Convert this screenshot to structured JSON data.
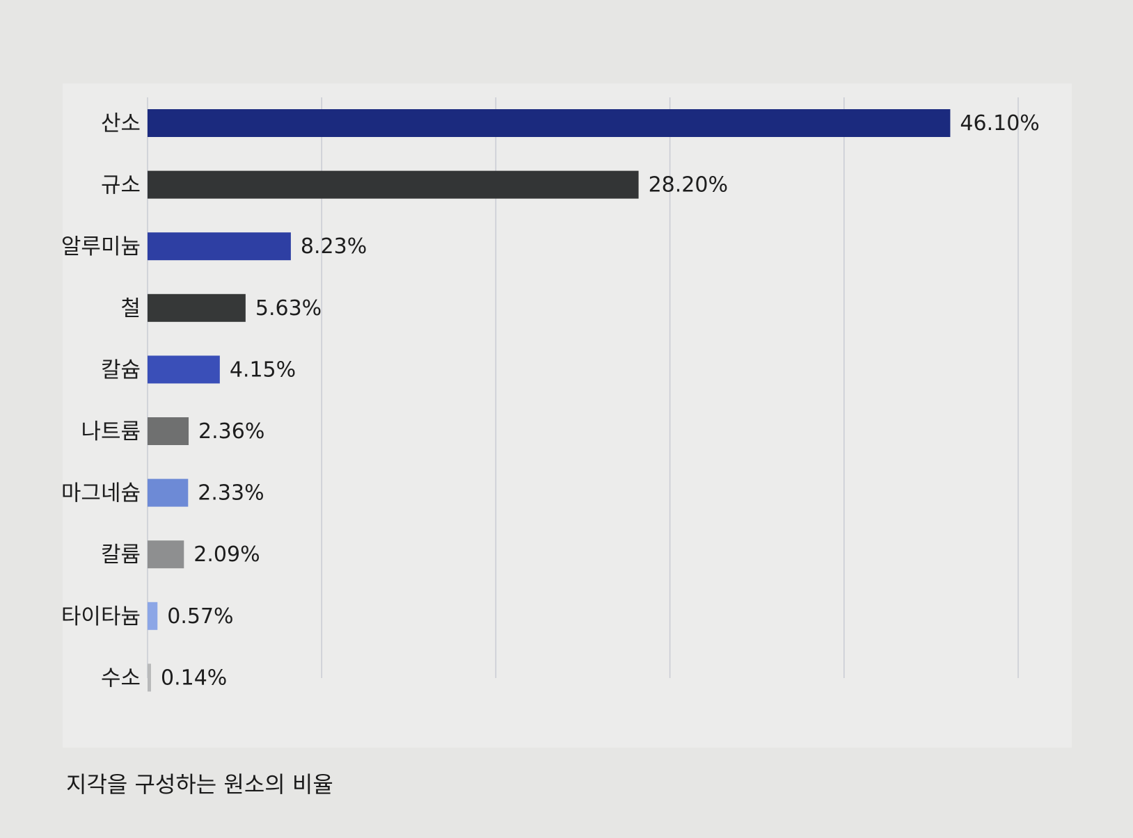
{
  "chart_data": {
    "type": "bar",
    "orientation": "horizontal",
    "categories": [
      "산소",
      "규소",
      "알루미늄",
      "철",
      "칼슘",
      "나트륨",
      "마그네슘",
      "칼륨",
      "타이타늄",
      "수소"
    ],
    "values": [
      46.1,
      28.2,
      8.23,
      5.63,
      4.15,
      2.36,
      2.33,
      2.09,
      0.57,
      0.14
    ],
    "value_labels": [
      "46.10%",
      "28.20%",
      "8.23%",
      "5.63%",
      "4.15%",
      "2.36%",
      "2.33%",
      "2.09%",
      "0.57%",
      "0.14%"
    ],
    "bar_colors": [
      "#1b2a7e",
      "#333536",
      "#2e3fa3",
      "#363838",
      "#3a4fb8",
      "#6f7070",
      "#6d8ad6",
      "#8e8f90",
      "#8ca6e6",
      "#b8b9ba"
    ],
    "xlim": [
      0,
      50
    ],
    "grid": true,
    "legend": "none"
  },
  "caption": "지각을 구성하는 원소의 비율"
}
